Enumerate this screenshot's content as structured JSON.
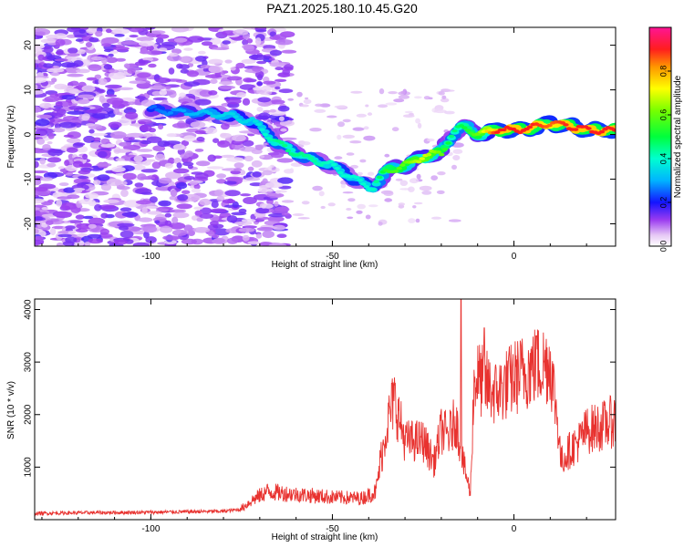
{
  "title": "PAZ1.2025.180.10.45.G20",
  "chart_data": [
    {
      "type": "heatmap",
      "title": "",
      "xlabel": "Height of straight line (km)",
      "ylabel": "Frequency (Hz)",
      "xlim": [
        -132,
        28
      ],
      "ylim": [
        -25,
        24
      ],
      "xticks": [
        -100,
        -50,
        0
      ],
      "yticks": [
        -20,
        -10,
        0,
        10,
        20
      ],
      "colorbar": {
        "label": "Normalized spectral amplitude",
        "range": [
          0,
          1
        ],
        "ticks": [
          0,
          0.2,
          0.4,
          0.6,
          0.8
        ],
        "tick_labels": [
          "0.0",
          "0.2",
          "0.4",
          "0.6",
          "0.8"
        ],
        "colormap": "rainbow (white → violet → blue → cyan → green → yellow → orange → red → magenta)"
      },
      "ridge": {
        "description": "Dominant frequency track",
        "x": [
          -100,
          -90,
          -80,
          -72,
          -65,
          -58,
          -50,
          -44,
          -39,
          -35,
          -30,
          -25,
          -20,
          -17,
          -14,
          -10,
          -5,
          0,
          5,
          10,
          15,
          20,
          28
        ],
        "y": [
          5.5,
          5,
          4.5,
          3,
          -2,
          -5,
          -7,
          -10,
          -12,
          -8,
          -7,
          -5,
          -4,
          0,
          2,
          0,
          1,
          1,
          1.5,
          2.5,
          2,
          1,
          1
        ],
        "peak_amplitude": [
          0.25,
          0.3,
          0.35,
          0.35,
          0.45,
          0.45,
          0.4,
          0.4,
          0.4,
          0.55,
          0.6,
          0.7,
          0.6,
          0.45,
          0.5,
          0.6,
          0.9,
          0.9,
          0.9,
          0.85,
          0.9,
          0.9,
          0.9
        ]
      }
    },
    {
      "type": "line",
      "title": "",
      "xlabel": "Height of straight line (km)",
      "ylabel": "SNR (10 * v/v)",
      "xlim": [
        -132,
        28
      ],
      "ylim": [
        0,
        4200
      ],
      "xticks": [
        -100,
        -50,
        0
      ],
      "yticks": [
        1000,
        2000,
        3000,
        4000
      ],
      "color": "#e8322f",
      "envelope_x": [
        -132,
        -120,
        -100,
        -80,
        -75,
        -72,
        -68,
        -60,
        -50,
        -42,
        -38,
        -35,
        -33,
        -30,
        -25,
        -22,
        -20,
        -18,
        -16,
        -14,
        -12,
        -11,
        -10,
        -5,
        0,
        5,
        10,
        12,
        13,
        15,
        18,
        20,
        25,
        28
      ],
      "envelope_y": [
        120,
        130,
        140,
        160,
        200,
        350,
        500,
        450,
        400,
        380,
        500,
        1800,
        2300,
        1500,
        1500,
        1100,
        1700,
        1600,
        1900,
        1100,
        500,
        2600,
        2700,
        2400,
        2700,
        2900,
        3000,
        1900,
        1100,
        1300,
        1500,
        1700,
        1800,
        1900
      ]
    }
  ]
}
